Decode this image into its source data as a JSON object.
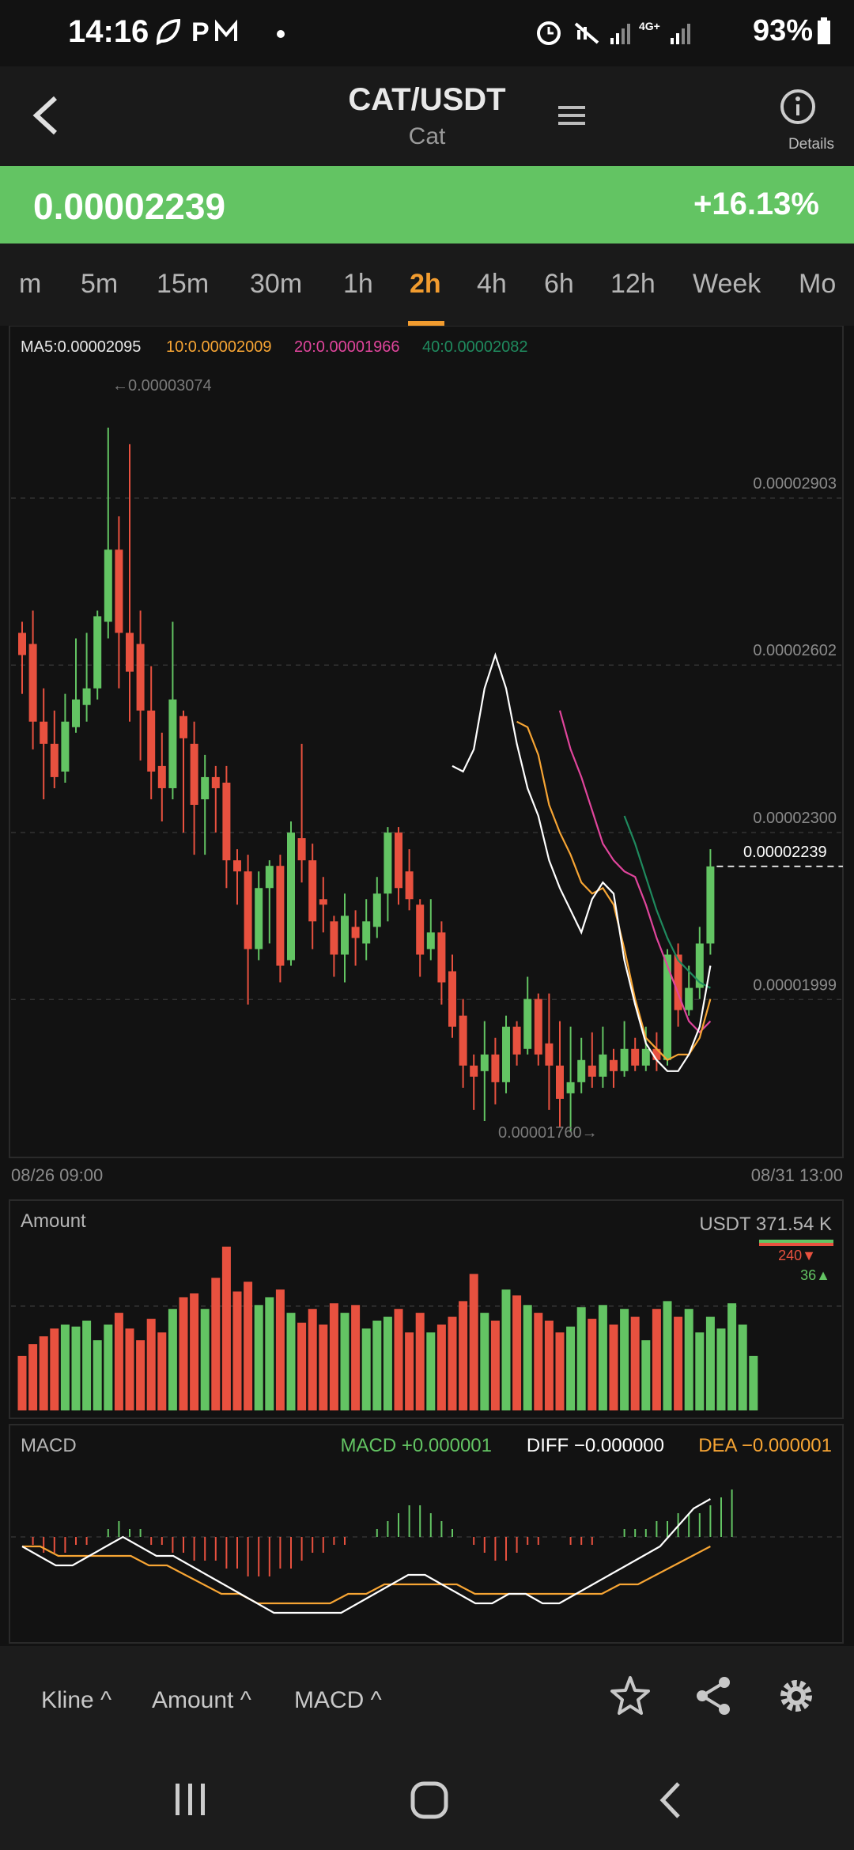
{
  "status": {
    "time": "14:16",
    "network": "4G+",
    "battery": "93%"
  },
  "header": {
    "pair": "CAT/USDT",
    "name": "Cat",
    "details_label": "Details"
  },
  "price": {
    "last": "0.00002239",
    "change": "+16.13%"
  },
  "tabs": [
    {
      "label": "m",
      "active": false
    },
    {
      "label": "5m",
      "active": false
    },
    {
      "label": "15m",
      "active": false
    },
    {
      "label": "30m",
      "active": false
    },
    {
      "label": "1h",
      "active": false
    },
    {
      "label": "2h",
      "active": true
    },
    {
      "label": "4h",
      "active": false
    },
    {
      "label": "6h",
      "active": false
    },
    {
      "label": "12h",
      "active": false
    },
    {
      "label": "Week",
      "active": false
    },
    {
      "label": "Mo",
      "active": false
    }
  ],
  "ma_legend": {
    "ma5": "MA5:0.00002095",
    "ma10": "10:0.00002009",
    "ma20": "20:0.00001966",
    "ma40": "40:0.00002082"
  },
  "price_axis": {
    "levels": [
      "0.00002903",
      "0.00002602",
      "0.00002300",
      "0.00001999"
    ],
    "current": "0.00002239",
    "high_label": "←0.00003074",
    "low_label": "0.00001760→"
  },
  "time_axis": {
    "start": "08/26 09:00",
    "end": "08/31 13:00"
  },
  "amount": {
    "title": "Amount",
    "total": "USDT 371.54 K",
    "sell": "240▼",
    "buy": "36▲"
  },
  "macd": {
    "title": "MACD",
    "macd": "MACD +0.000001",
    "diff": "DIFF −0.000000",
    "dea": "DEA −0.000001"
  },
  "toolbar": {
    "kline": "Kline ^",
    "amount": "Amount ^",
    "macd": "MACD ^"
  },
  "colors": {
    "up": "#63c463",
    "down": "#e8513f",
    "accent": "#f29c2f",
    "ma5": "#ffffff",
    "ma10": "#f7a534",
    "ma20": "#e0459c",
    "ma40": "#1f8a5e"
  },
  "chart_data": [
    {
      "type": "candlestick",
      "title": "CAT/USDT 2h",
      "x_range": [
        "08/26 09:00",
        "08/31 13:00"
      ],
      "ylim": [
        1.76e-05,
        3.074e-05
      ],
      "candles": [
        {
          "o": 2.66e-05,
          "c": 2.62e-05,
          "h": 2.68e-05,
          "l": 2.55e-05
        },
        {
          "o": 2.64e-05,
          "c": 2.5e-05,
          "h": 2.7e-05,
          "l": 2.45e-05
        },
        {
          "o": 2.5e-05,
          "c": 2.46e-05,
          "h": 2.56e-05,
          "l": 2.36e-05
        },
        {
          "o": 2.46e-05,
          "c": 2.4e-05,
          "h": 2.52e-05,
          "l": 2.38e-05
        },
        {
          "o": 2.41e-05,
          "c": 2.5e-05,
          "h": 2.55e-05,
          "l": 2.39e-05
        },
        {
          "o": 2.49e-05,
          "c": 2.54e-05,
          "h": 2.65e-05,
          "l": 2.48e-05
        },
        {
          "o": 2.53e-05,
          "c": 2.56e-05,
          "h": 2.66e-05,
          "l": 2.5e-05
        },
        {
          "o": 2.56e-05,
          "c": 2.69e-05,
          "h": 2.7e-05,
          "l": 2.54e-05
        },
        {
          "o": 2.68e-05,
          "c": 2.81e-05,
          "h": 3.03e-05,
          "l": 2.65e-05
        },
        {
          "o": 2.81e-05,
          "c": 2.66e-05,
          "h": 2.87e-05,
          "l": 2.56e-05
        },
        {
          "o": 2.66e-05,
          "c": 2.59e-05,
          "h": 3e-05,
          "l": 2.5e-05
        },
        {
          "o": 2.64e-05,
          "c": 2.52e-05,
          "h": 2.7e-05,
          "l": 2.43e-05
        },
        {
          "o": 2.52e-05,
          "c": 2.41e-05,
          "h": 2.6e-05,
          "l": 2.36e-05
        },
        {
          "o": 2.42e-05,
          "c": 2.38e-05,
          "h": 2.48e-05,
          "l": 2.32e-05
        },
        {
          "o": 2.38e-05,
          "c": 2.54e-05,
          "h": 2.68e-05,
          "l": 2.36e-05
        },
        {
          "o": 2.51e-05,
          "c": 2.47e-05,
          "h": 2.52e-05,
          "l": 2.3e-05
        },
        {
          "o": 2.46e-05,
          "c": 2.35e-05,
          "h": 2.5e-05,
          "l": 2.26e-05
        },
        {
          "o": 2.36e-05,
          "c": 2.4e-05,
          "h": 2.44e-05,
          "l": 2.26e-05
        },
        {
          "o": 2.4e-05,
          "c": 2.38e-05,
          "h": 2.42e-05,
          "l": 2.3e-05
        },
        {
          "o": 2.39e-05,
          "c": 2.25e-05,
          "h": 2.42e-05,
          "l": 2.2e-05
        },
        {
          "o": 2.25e-05,
          "c": 2.23e-05,
          "h": 2.27e-05,
          "l": 2.17e-05
        },
        {
          "o": 2.23e-05,
          "c": 2.09e-05,
          "h": 2.26e-05,
          "l": 1.99e-05
        },
        {
          "o": 2.09e-05,
          "c": 2.2e-05,
          "h": 2.23e-05,
          "l": 2.07e-05
        },
        {
          "o": 2.2e-05,
          "c": 2.24e-05,
          "h": 2.25e-05,
          "l": 2.1e-05
        },
        {
          "o": 2.24e-05,
          "c": 2.06e-05,
          "h": 2.26e-05,
          "l": 2.03e-05
        },
        {
          "o": 2.07e-05,
          "c": 2.3e-05,
          "h": 2.32e-05,
          "l": 2.06e-05
        },
        {
          "o": 2.29e-05,
          "c": 2.25e-05,
          "h": 2.46e-05,
          "l": 2.21e-05
        },
        {
          "o": 2.25e-05,
          "c": 2.14e-05,
          "h": 2.28e-05,
          "l": 2.09e-05
        },
        {
          "o": 2.18e-05,
          "c": 2.17e-05,
          "h": 2.22e-05,
          "l": 2.12e-05
        },
        {
          "o": 2.14e-05,
          "c": 2.08e-05,
          "h": 2.15e-05,
          "l": 2.04e-05
        },
        {
          "o": 2.08e-05,
          "c": 2.15e-05,
          "h": 2.19e-05,
          "l": 2.03e-05
        },
        {
          "o": 2.13e-05,
          "c": 2.11e-05,
          "h": 2.16e-05,
          "l": 2.06e-05
        },
        {
          "o": 2.1e-05,
          "c": 2.14e-05,
          "h": 2.18e-05,
          "l": 2.07e-05
        },
        {
          "o": 2.13e-05,
          "c": 2.19e-05,
          "h": 2.22e-05,
          "l": 2.11e-05
        },
        {
          "o": 2.19e-05,
          "c": 2.3e-05,
          "h": 2.31e-05,
          "l": 2.14e-05
        },
        {
          "o": 2.3e-05,
          "c": 2.2e-05,
          "h": 2.31e-05,
          "l": 2.17e-05
        },
        {
          "o": 2.23e-05,
          "c": 2.18e-05,
          "h": 2.27e-05,
          "l": 2.16e-05
        },
        {
          "o": 2.17e-05,
          "c": 2.08e-05,
          "h": 2.18e-05,
          "l": 2.04e-05
        },
        {
          "o": 2.09e-05,
          "c": 2.12e-05,
          "h": 2.18e-05,
          "l": 2.07e-05
        },
        {
          "o": 2.12e-05,
          "c": 2.03e-05,
          "h": 2.14e-05,
          "l": 1.99e-05
        },
        {
          "o": 2.05e-05,
          "c": 1.95e-05,
          "h": 2.08e-05,
          "l": 1.93e-05
        },
        {
          "o": 1.97e-05,
          "c": 1.88e-05,
          "h": 2e-05,
          "l": 1.84e-05
        },
        {
          "o": 1.88e-05,
          "c": 1.86e-05,
          "h": 1.9e-05,
          "l": 1.8e-05
        },
        {
          "o": 1.87e-05,
          "c": 1.9e-05,
          "h": 1.96e-05,
          "l": 1.78e-05
        },
        {
          "o": 1.9e-05,
          "c": 1.85e-05,
          "h": 1.93e-05,
          "l": 1.81e-05
        },
        {
          "o": 1.85e-05,
          "c": 1.95e-05,
          "h": 1.97e-05,
          "l": 1.83e-05
        },
        {
          "o": 1.95e-05,
          "c": 1.9e-05,
          "h": 1.96e-05,
          "l": 1.88e-05
        },
        {
          "o": 1.91e-05,
          "c": 2e-05,
          "h": 2.04e-05,
          "l": 1.9e-05
        },
        {
          "o": 2e-05,
          "c": 1.9e-05,
          "h": 2.01e-05,
          "l": 1.88e-05
        },
        {
          "o": 1.92e-05,
          "c": 1.88e-05,
          "h": 2.01e-05,
          "l": 1.8e-05
        },
        {
          "o": 1.88e-05,
          "c": 1.82e-05,
          "h": 1.96e-05,
          "l": 1.77e-05
        },
        {
          "o": 1.83e-05,
          "c": 1.85e-05,
          "h": 1.95e-05,
          "l": 1.76e-05
        },
        {
          "o": 1.85e-05,
          "c": 1.89e-05,
          "h": 1.93e-05,
          "l": 1.83e-05
        },
        {
          "o": 1.88e-05,
          "c": 1.86e-05,
          "h": 1.94e-05,
          "l": 1.84e-05
        },
        {
          "o": 1.86e-05,
          "c": 1.9e-05,
          "h": 1.95e-05,
          "l": 1.84e-05
        },
        {
          "o": 1.89e-05,
          "c": 1.87e-05,
          "h": 1.91e-05,
          "l": 1.84e-05
        },
        {
          "o": 1.87e-05,
          "c": 1.91e-05,
          "h": 1.96e-05,
          "l": 1.86e-05
        },
        {
          "o": 1.91e-05,
          "c": 1.88e-05,
          "h": 1.93e-05,
          "l": 1.87e-05
        },
        {
          "o": 1.88e-05,
          "c": 1.91e-05,
          "h": 1.95e-05,
          "l": 1.87e-05
        },
        {
          "o": 1.91e-05,
          "c": 1.89e-05,
          "h": 1.94e-05,
          "l": 1.87e-05
        },
        {
          "o": 1.89e-05,
          "c": 2.08e-05,
          "h": 2.09e-05,
          "l": 1.88e-05
        },
        {
          "o": 2.08e-05,
          "c": 1.98e-05,
          "h": 2.1e-05,
          "l": 1.95e-05
        },
        {
          "o": 1.98e-05,
          "c": 2.02e-05,
          "h": 2.06e-05,
          "l": 1.97e-05
        },
        {
          "o": 2.02e-05,
          "c": 2.1e-05,
          "h": 2.13e-05,
          "l": 2e-05
        },
        {
          "o": 2.1e-05,
          "c": 2.239e-05,
          "h": 2.27e-05,
          "l": 2.08e-05
        }
      ],
      "ma5": [
        2.42e-05,
        2.41e-05,
        2.45e-05,
        2.56e-05,
        2.62e-05,
        2.56e-05,
        2.46e-05,
        2.38e-05,
        2.33e-05,
        2.25e-05,
        2.2e-05,
        2.16e-05,
        2.12e-05,
        2.18e-05,
        2.21e-05,
        2.19e-05,
        2.07e-05,
        1.99e-05,
        1.92e-05,
        1.89e-05,
        1.87e-05,
        1.87e-05,
        1.9e-05,
        1.95e-05,
        2.06e-05
      ],
      "ma10": [
        2.5e-05,
        2.49e-05,
        2.44e-05,
        2.35e-05,
        2.3e-05,
        2.26e-05,
        2.21e-05,
        2.19e-05,
        2.2e-05,
        2.17e-05,
        2.09e-05,
        2e-05,
        1.93e-05,
        1.91e-05,
        1.89e-05,
        1.9e-05,
        1.9e-05,
        1.93e-05,
        2e-05
      ],
      "ma20": [
        2.52e-05,
        2.45e-05,
        2.4e-05,
        2.34e-05,
        2.28e-05,
        2.25e-05,
        2.23e-05,
        2.22e-05,
        2.17e-05,
        2.11e-05,
        2.06e-05,
        2.01e-05,
        1.96e-05,
        1.94e-05,
        1.96e-05
      ],
      "ma40": [
        2.33e-05,
        2.28e-05,
        2.22e-05,
        2.16e-05,
        2.11e-05,
        2.07e-05,
        2.05e-05,
        2.03e-05,
        2.02e-05
      ]
    },
    {
      "type": "bar",
      "title": "Amount",
      "values": [
        28,
        34,
        38,
        42,
        44,
        43,
        46,
        36,
        44,
        50,
        42,
        36,
        47,
        40,
        52,
        58,
        60,
        52,
        68,
        84,
        61,
        66,
        54,
        58,
        62,
        50,
        45,
        52,
        44,
        55,
        50,
        54,
        42,
        46,
        48,
        52,
        40,
        50,
        40,
        44,
        48,
        56,
        70,
        50,
        46,
        62,
        59,
        54,
        50,
        46,
        40,
        43,
        53,
        47,
        54,
        44,
        52,
        48,
        36,
        52,
        56,
        48,
        52,
        40,
        48,
        42,
        55,
        44,
        28
      ],
      "ylim": [
        0,
        90
      ]
    },
    {
      "type": "bar",
      "title": "MACD",
      "histogram": [
        0,
        -1,
        -2,
        -2,
        -2,
        -1,
        -1,
        0,
        1,
        2,
        1,
        1,
        -1,
        -1,
        -2,
        -2,
        -3,
        -3,
        -3,
        -4,
        -4,
        -5,
        -5,
        -5,
        -4,
        -4,
        -3,
        -2,
        -2,
        -1,
        -1,
        0,
        0,
        1,
        2,
        3,
        4,
        4,
        3,
        2,
        1,
        0,
        -1,
        -2,
        -3,
        -3,
        -2,
        -1,
        -1,
        0,
        0,
        -1,
        -1,
        -1,
        0,
        0,
        1,
        1,
        1,
        2,
        2,
        3,
        3,
        3,
        4,
        5,
        6
      ],
      "diff": [
        -1,
        -2,
        -3,
        -3,
        -2,
        -1,
        0,
        -1,
        -2,
        -2,
        -3,
        -4,
        -5,
        -6,
        -7,
        -8,
        -8,
        -8,
        -8,
        -8,
        -7,
        -6,
        -5,
        -4,
        -4,
        -5,
        -6,
        -7,
        -7,
        -6,
        -6,
        -7,
        -7,
        -6,
        -5,
        -4,
        -3,
        -2,
        -1,
        1,
        3,
        4
      ],
      "dea": [
        -1,
        -1,
        -2,
        -2,
        -2,
        -2,
        -2,
        -3,
        -3,
        -4,
        -5,
        -6,
        -6,
        -7,
        -7,
        -7,
        -7,
        -7,
        -6,
        -6,
        -5,
        -5,
        -5,
        -5,
        -5,
        -6,
        -6,
        -6,
        -6,
        -6,
        -6,
        -6,
        -6,
        -5,
        -5,
        -4,
        -3,
        -2,
        -1
      ]
    }
  ]
}
